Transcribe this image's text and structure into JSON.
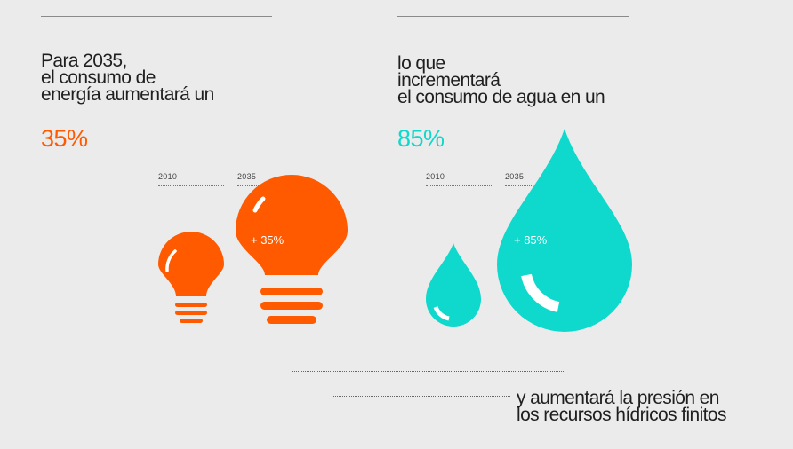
{
  "energy": {
    "heading_lines": [
      "Para 2035,",
      "el consumo de",
      "energía aumentará un"
    ],
    "percent": "35%",
    "year_start": "2010",
    "year_end": "2035",
    "increase_label": "+ 35%",
    "color": "#ff5a00"
  },
  "water": {
    "heading_lines": [
      "lo que",
      "incrementará",
      "el consumo de agua en un"
    ],
    "percent": "85%",
    "year_start": "2010",
    "year_end": "2035",
    "increase_label": "+ 85%",
    "color": "#0fd8cc"
  },
  "conclusion": {
    "lines": [
      "y aumentará la presión en",
      "los recursos hídricos finitos"
    ]
  }
}
